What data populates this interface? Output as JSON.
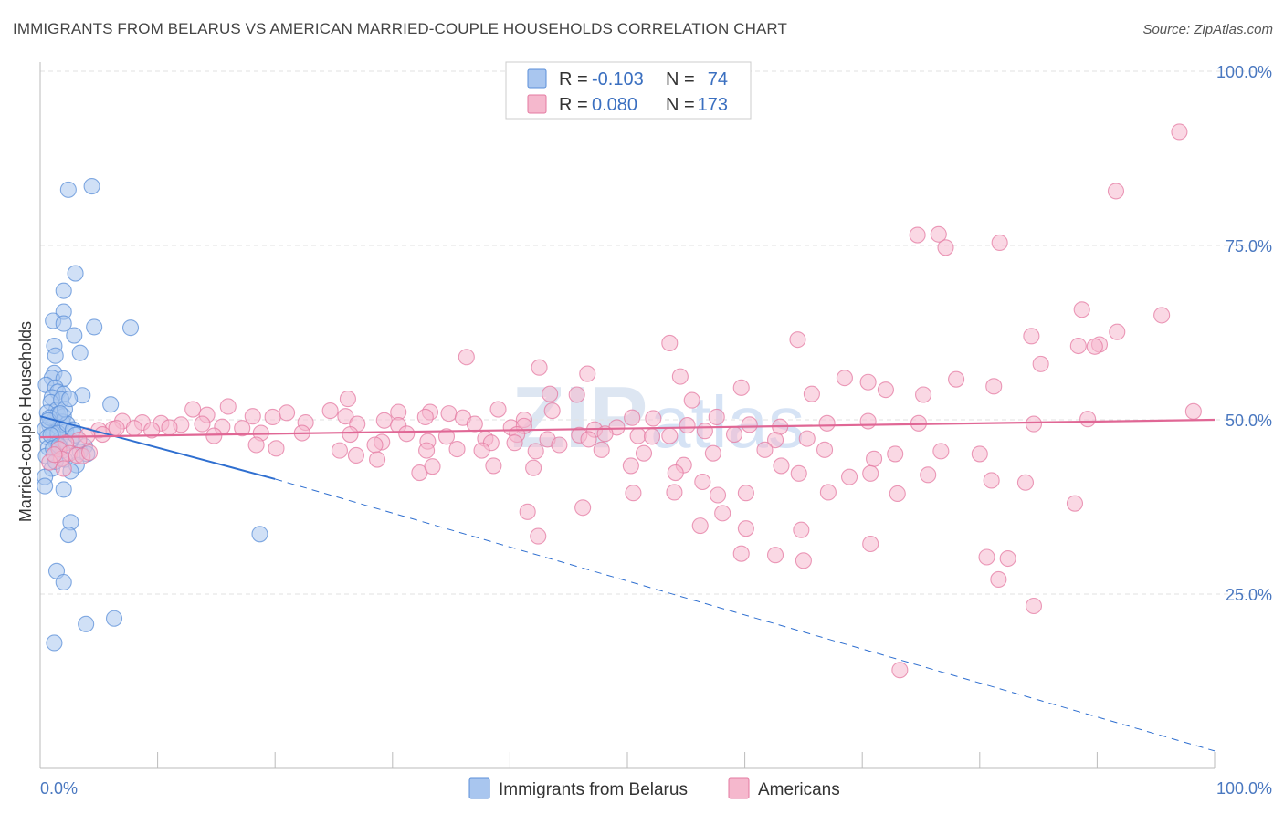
{
  "title": "IMMIGRANTS FROM BELARUS VS AMERICAN MARRIED-COUPLE HOUSEHOLDS CORRELATION CHART",
  "source": "Source: ZipAtlas.com",
  "watermark": {
    "zip": "ZIP",
    "atlas": "atlas"
  },
  "chart_data": {
    "type": "scatter",
    "ylabel": "Married-couple Households",
    "xlim": [
      0,
      100
    ],
    "ylim": [
      0,
      100
    ],
    "x_tick_labels": {
      "min": "0.0%",
      "max": "100.0%"
    },
    "y_ticks": [
      {
        "value": 25,
        "label": "25.0%"
      },
      {
        "value": 50,
        "label": "50.0%"
      },
      {
        "value": 75,
        "label": "75.0%"
      },
      {
        "value": 100,
        "label": "100.0%"
      }
    ],
    "grid": true,
    "legend": {
      "position": "top-center",
      "rows": [
        {
          "r_label": "R =",
          "r": "-0.103",
          "n_label": "N =",
          "n": "74"
        },
        {
          "r_label": "R =",
          "r": "0.080",
          "n_label": "N =",
          "n": "173"
        }
      ]
    },
    "series": [
      {
        "name": "Immigrants from Belarus",
        "color": "#5b8fd8",
        "fill": "#a9c6ef",
        "trend": {
          "x0": 0,
          "y0": 50.5,
          "x1": 20,
          "y1": 41.5,
          "dash_to_x": 100,
          "dash_to_y": 2.5
        },
        "points": [
          [
            2.4,
            83
          ],
          [
            4.4,
            83.5
          ],
          [
            3,
            71
          ],
          [
            2,
            68.5
          ],
          [
            2,
            65.5
          ],
          [
            1.1,
            64.2
          ],
          [
            2,
            63.8
          ],
          [
            4.6,
            63.3
          ],
          [
            7.7,
            63.2
          ],
          [
            2.9,
            62.1
          ],
          [
            1.2,
            60.6
          ],
          [
            3.4,
            59.6
          ],
          [
            1.3,
            59.2
          ],
          [
            1.2,
            56.7
          ],
          [
            1,
            56
          ],
          [
            2,
            55.9
          ],
          [
            0.5,
            55
          ],
          [
            1.3,
            54.6
          ],
          [
            1.5,
            54
          ],
          [
            2,
            53.7
          ],
          [
            3.6,
            53.5
          ],
          [
            1,
            53.2
          ],
          [
            0.9,
            52.5
          ],
          [
            6,
            52.2
          ],
          [
            1.4,
            51.4
          ],
          [
            0.6,
            51
          ],
          [
            1.5,
            50.8
          ],
          [
            2,
            50.5
          ],
          [
            1.2,
            50
          ],
          [
            1.9,
            49.7
          ],
          [
            0.8,
            49.2
          ],
          [
            1.6,
            48.9
          ],
          [
            0.4,
            48.6
          ],
          [
            2.2,
            48.3
          ],
          [
            1.1,
            48
          ],
          [
            0.6,
            47.5
          ],
          [
            1.7,
            47.2
          ],
          [
            2.6,
            47
          ],
          [
            1.4,
            46.6
          ],
          [
            3.8,
            46.2
          ],
          [
            0.7,
            46
          ],
          [
            1.9,
            45.6
          ],
          [
            3.4,
            45.4
          ],
          [
            4,
            45.1
          ],
          [
            0.5,
            44.8
          ],
          [
            2.1,
            44.3
          ],
          [
            3.1,
            43.5
          ],
          [
            1,
            43
          ],
          [
            2.6,
            42.6
          ],
          [
            0.4,
            41.8
          ],
          [
            0.4,
            40.5
          ],
          [
            2,
            40
          ],
          [
            2.6,
            35.3
          ],
          [
            2.4,
            33.5
          ],
          [
            18.7,
            33.6
          ],
          [
            1.4,
            28.3
          ],
          [
            2,
            26.7
          ],
          [
            6.3,
            21.5
          ],
          [
            3.9,
            20.7
          ],
          [
            1.2,
            18
          ],
          [
            1.5,
            48.1
          ],
          [
            0.8,
            50.3
          ],
          [
            2.3,
            49.4
          ],
          [
            1.8,
            52.9
          ],
          [
            0.9,
            47.8
          ],
          [
            1.1,
            45.9
          ],
          [
            2.8,
            48.6
          ],
          [
            1.6,
            46.3
          ],
          [
            0.7,
            49.9
          ],
          [
            2.1,
            51.5
          ],
          [
            1.3,
            44
          ],
          [
            3,
            47.8
          ],
          [
            1.7,
            50.9
          ],
          [
            2.5,
            53
          ]
        ]
      },
      {
        "name": "Americans",
        "color": "#e47aa1",
        "fill": "#f5b8cd",
        "trend": {
          "x0": 0,
          "y0": 47.5,
          "x1": 100,
          "y1": 50
        },
        "points": [
          [
            97,
            91.3
          ],
          [
            91.6,
            82.8
          ],
          [
            74.7,
            76.5
          ],
          [
            77.1,
            74.7
          ],
          [
            81.7,
            75.4
          ],
          [
            76.5,
            76.6
          ],
          [
            95.5,
            65
          ],
          [
            88.7,
            65.8
          ],
          [
            91.7,
            62.6
          ],
          [
            84.4,
            62
          ],
          [
            64.5,
            61.5
          ],
          [
            90.2,
            60.8
          ],
          [
            53.6,
            61
          ],
          [
            88.4,
            60.6
          ],
          [
            89.8,
            60.5
          ],
          [
            85.2,
            58
          ],
          [
            36.3,
            59
          ],
          [
            42.5,
            57.5
          ],
          [
            46.6,
            56.6
          ],
          [
            54.5,
            56.2
          ],
          [
            68.5,
            56
          ],
          [
            78,
            55.8
          ],
          [
            70.5,
            55.4
          ],
          [
            72,
            54.3
          ],
          [
            81.2,
            54.8
          ],
          [
            59.7,
            54.6
          ],
          [
            65.7,
            53.7
          ],
          [
            43.4,
            53.7
          ],
          [
            45.7,
            53.6
          ],
          [
            26.2,
            53
          ],
          [
            55.5,
            52.8
          ],
          [
            75.2,
            53.6
          ],
          [
            98.2,
            51.2
          ],
          [
            13,
            51.5
          ],
          [
            43.6,
            51.3
          ],
          [
            30.5,
            51.1
          ],
          [
            52.2,
            50.2
          ],
          [
            16,
            51.9
          ],
          [
            39,
            51.5
          ],
          [
            24.7,
            51.3
          ],
          [
            33.2,
            51.1
          ],
          [
            26,
            50.5
          ],
          [
            21,
            51
          ],
          [
            34.8,
            50.9
          ],
          [
            36,
            50.3
          ],
          [
            32.8,
            50.4
          ],
          [
            41.2,
            50
          ],
          [
            14.2,
            50.7
          ],
          [
            18.1,
            50.5
          ],
          [
            57.6,
            50.4
          ],
          [
            50.4,
            50.3
          ],
          [
            19.8,
            50.4
          ],
          [
            22.6,
            49.6
          ],
          [
            27,
            49.4
          ],
          [
            29.3,
            49.9
          ],
          [
            30.5,
            49.2
          ],
          [
            37,
            49.4
          ],
          [
            40.1,
            48.9
          ],
          [
            41.2,
            49.1
          ],
          [
            47.2,
            48.6
          ],
          [
            49.1,
            48.9
          ],
          [
            55.1,
            49.2
          ],
          [
            60.4,
            49.3
          ],
          [
            63,
            49
          ],
          [
            67,
            49.5
          ],
          [
            70.5,
            49.8
          ],
          [
            74.8,
            49.5
          ],
          [
            84.6,
            49.4
          ],
          [
            89.2,
            50.1
          ],
          [
            7,
            49.8
          ],
          [
            8.7,
            49.6
          ],
          [
            10.3,
            49.5
          ],
          [
            12,
            49.3
          ],
          [
            13.8,
            49.4
          ],
          [
            15.5,
            49
          ],
          [
            17.2,
            48.8
          ],
          [
            11,
            48.9
          ],
          [
            9.5,
            48.5
          ],
          [
            8,
            48.8
          ],
          [
            6.2,
            48.7
          ],
          [
            5,
            48.5
          ],
          [
            4,
            47.7
          ],
          [
            3.3,
            47.1
          ],
          [
            2.2,
            46.7
          ],
          [
            1.6,
            45.8
          ],
          [
            2.5,
            45.2
          ],
          [
            3.1,
            44.9
          ],
          [
            1.8,
            44.4
          ],
          [
            0.8,
            43.9
          ],
          [
            3.6,
            44.8
          ],
          [
            4.2,
            45.3
          ],
          [
            1.2,
            45
          ],
          [
            2,
            43
          ],
          [
            5.3,
            47.9
          ],
          [
            6.5,
            48.8
          ],
          [
            14.8,
            47.7
          ],
          [
            18.8,
            48.1
          ],
          [
            22.3,
            48.1
          ],
          [
            26.4,
            47.9
          ],
          [
            29.1,
            46.8
          ],
          [
            31.2,
            48
          ],
          [
            34.6,
            47.6
          ],
          [
            37.9,
            47.3
          ],
          [
            40.6,
            47.9
          ],
          [
            43.2,
            47.2
          ],
          [
            45.9,
            47.8
          ],
          [
            48.1,
            48
          ],
          [
            50.9,
            47.7
          ],
          [
            53.6,
            47.7
          ],
          [
            56.6,
            48.4
          ],
          [
            59.1,
            47.9
          ],
          [
            62.6,
            47.1
          ],
          [
            65.3,
            47.3
          ],
          [
            52.1,
            47.6
          ],
          [
            46.7,
            47.2
          ],
          [
            38.4,
            46.7
          ],
          [
            33,
            46.9
          ],
          [
            28.5,
            46.4
          ],
          [
            25.5,
            45.6
          ],
          [
            18.4,
            46.4
          ],
          [
            20.1,
            45.9
          ],
          [
            26.9,
            44.9
          ],
          [
            28.7,
            44.3
          ],
          [
            32.9,
            45.6
          ],
          [
            35.5,
            45.8
          ],
          [
            37.6,
            45.6
          ],
          [
            40.4,
            46.7
          ],
          [
            42.2,
            45.5
          ],
          [
            44.2,
            46.4
          ],
          [
            47.8,
            45.7
          ],
          [
            51.4,
            45.2
          ],
          [
            57.3,
            45.2
          ],
          [
            61.7,
            45.7
          ],
          [
            66.8,
            45.7
          ],
          [
            71,
            44.4
          ],
          [
            72.8,
            45.1
          ],
          [
            76.7,
            45.5
          ],
          [
            80,
            45.1
          ],
          [
            32.3,
            42.4
          ],
          [
            33.4,
            43.3
          ],
          [
            38.6,
            43.4
          ],
          [
            42,
            43.1
          ],
          [
            50.3,
            43.4
          ],
          [
            54.8,
            43.5
          ],
          [
            63.1,
            43.4
          ],
          [
            64.6,
            42.3
          ],
          [
            68.9,
            41.8
          ],
          [
            70.7,
            42.3
          ],
          [
            75.6,
            42.1
          ],
          [
            81,
            41.3
          ],
          [
            83.9,
            41
          ],
          [
            88.1,
            38
          ],
          [
            73,
            39.4
          ],
          [
            67.1,
            39.6
          ],
          [
            60.1,
            39.5
          ],
          [
            57.7,
            39.2
          ],
          [
            56.4,
            41.1
          ],
          [
            54,
            39.6
          ],
          [
            50.5,
            39.5
          ],
          [
            46.2,
            37.4
          ],
          [
            41.5,
            36.8
          ],
          [
            42.4,
            33.3
          ],
          [
            64.8,
            34.2
          ],
          [
            70.7,
            32.2
          ],
          [
            60.1,
            34.4
          ],
          [
            56.2,
            34.8
          ],
          [
            58.1,
            36.6
          ],
          [
            59.7,
            30.8
          ],
          [
            62.6,
            30.6
          ],
          [
            65,
            29.8
          ],
          [
            80.6,
            30.3
          ],
          [
            82.4,
            30.1
          ],
          [
            81.6,
            27.1
          ],
          [
            84.6,
            23.3
          ],
          [
            73.2,
            14.1
          ],
          [
            54.1,
            42.4
          ]
        ]
      }
    ]
  }
}
